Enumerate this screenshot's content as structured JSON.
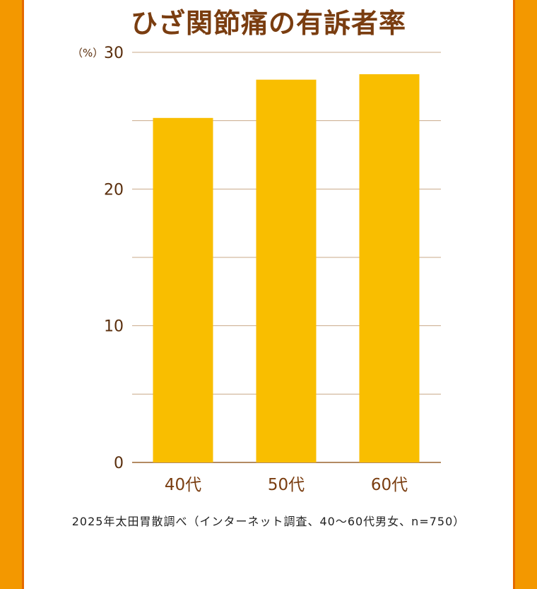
{
  "chart_data": {
    "type": "bar",
    "title": "ひざ関節痛の有訴者率",
    "unit": "（%）",
    "categories": [
      "40代",
      "50代",
      "60代"
    ],
    "values": [
      25.2,
      28.0,
      28.4
    ],
    "ylim": [
      0,
      30
    ],
    "yticks": [
      0,
      10,
      20,
      30
    ],
    "grid_minor": [
      5,
      15,
      25
    ],
    "grid": true,
    "bar_color": "#f9be00",
    "grid_color": "#c9a98a",
    "axis_color": "#b38a63",
    "note": "2025年太田胃散調べ（インターネット調査、40～60代男女、n=750）"
  },
  "colors": {
    "frame": "#f39800",
    "frame_edge": "#e46a00",
    "title": "#7a3d10"
  }
}
